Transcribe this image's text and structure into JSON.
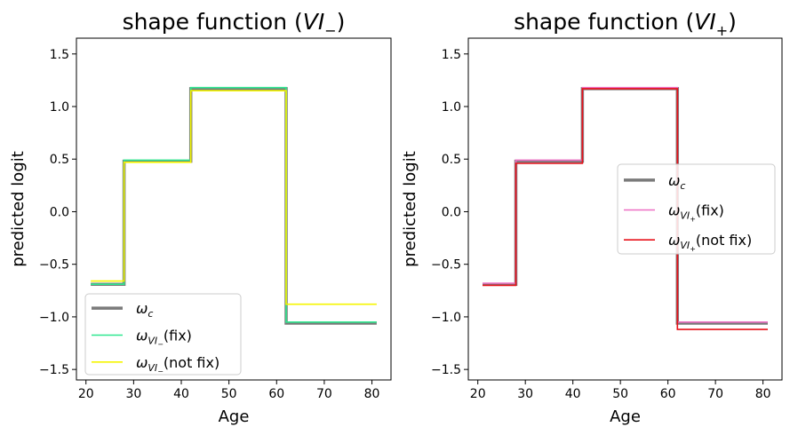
{
  "chart_data": [
    {
      "type": "line",
      "step": "post",
      "title_base": "shape function (",
      "title_symbol": "VI",
      "title_sub": "−",
      "title_close": ")",
      "xlabel": "Age",
      "ylabel": "predicted logit",
      "xlim": [
        18.0,
        84.0
      ],
      "ylim": [
        -1.6,
        1.65
      ],
      "xticks": [
        20,
        30,
        40,
        50,
        60,
        70,
        80
      ],
      "yticks": [
        -1.5,
        -1.0,
        -0.5,
        0.0,
        0.5,
        1.0,
        1.5
      ],
      "xtick_labels": [
        "20",
        "30",
        "40",
        "50",
        "60",
        "70",
        "80"
      ],
      "ytick_labels": [
        "−1.5",
        "−1.0",
        "−0.5",
        "0.0",
        "0.5",
        "1.0",
        "1.5"
      ],
      "legend_position": "lower-left",
      "series": [
        {
          "name": "ω_c",
          "legend_main": "ω",
          "legend_sub": "c",
          "legend_suffix": "",
          "color": "#7a7a7a",
          "width": 3.5,
          "x": [
            21,
            28,
            42,
            62,
            81
          ],
          "y": [
            -0.69,
            0.48,
            1.17,
            -1.06,
            -1.06
          ]
        },
        {
          "name": "ω_VI− (fix)",
          "legend_main": "ω",
          "legend_sub": "VI",
          "legend_subsub": "−",
          "legend_suffix": "(fix)",
          "color": "#2ee88f",
          "width": 1.6,
          "x": [
            21,
            28,
            42,
            62,
            81
          ],
          "y": [
            -0.69,
            0.49,
            1.18,
            -1.05,
            -1.05
          ]
        },
        {
          "name": "ω_VI− (not fix)",
          "legend_main": "ω",
          "legend_sub": "VI",
          "legend_subsub": "−",
          "legend_suffix": "(not fix)",
          "color": "#f5f500",
          "width": 1.6,
          "x": [
            21,
            28,
            42,
            62,
            81
          ],
          "y": [
            -0.66,
            0.47,
            1.15,
            -0.88,
            -0.88
          ]
        }
      ]
    },
    {
      "type": "line",
      "step": "post",
      "title_base": "shape function (",
      "title_symbol": "VI",
      "title_sub": "+",
      "title_close": ")",
      "xlabel": "Age",
      "ylabel": "predicted logit",
      "xlim": [
        18.0,
        84.0
      ],
      "ylim": [
        -1.6,
        1.65
      ],
      "xticks": [
        20,
        30,
        40,
        50,
        60,
        70,
        80
      ],
      "yticks": [
        -1.5,
        -1.0,
        -0.5,
        0.0,
        0.5,
        1.0,
        1.5
      ],
      "xtick_labels": [
        "20",
        "30",
        "40",
        "50",
        "60",
        "70",
        "80"
      ],
      "ytick_labels": [
        "−1.5",
        "−1.0",
        "−0.5",
        "0.0",
        "0.5",
        "1.0",
        "1.5"
      ],
      "legend_position": "center-right",
      "series": [
        {
          "name": "ω_c",
          "legend_main": "ω",
          "legend_sub": "c",
          "legend_suffix": "",
          "color": "#7a7a7a",
          "width": 3.5,
          "x": [
            21,
            28,
            42,
            62,
            81
          ],
          "y": [
            -0.69,
            0.48,
            1.17,
            -1.06,
            -1.06
          ]
        },
        {
          "name": "ω_VI+ (fix)",
          "legend_main": "ω",
          "legend_sub": "VI",
          "legend_subsub": "+",
          "legend_suffix": "(fix)",
          "color": "#ee6fc4",
          "width": 1.6,
          "x": [
            21,
            28,
            42,
            62,
            81
          ],
          "y": [
            -0.68,
            0.49,
            1.18,
            -1.05,
            -1.05
          ]
        },
        {
          "name": "ω_VI+ (not fix)",
          "legend_main": "ω",
          "legend_sub": "VI",
          "legend_subsub": "+",
          "legend_suffix": "(not fix)",
          "color": "#e8121a",
          "width": 1.6,
          "x": [
            21,
            28,
            42,
            62,
            81
          ],
          "y": [
            -0.7,
            0.46,
            1.17,
            -1.12,
            -1.12
          ]
        }
      ]
    }
  ]
}
